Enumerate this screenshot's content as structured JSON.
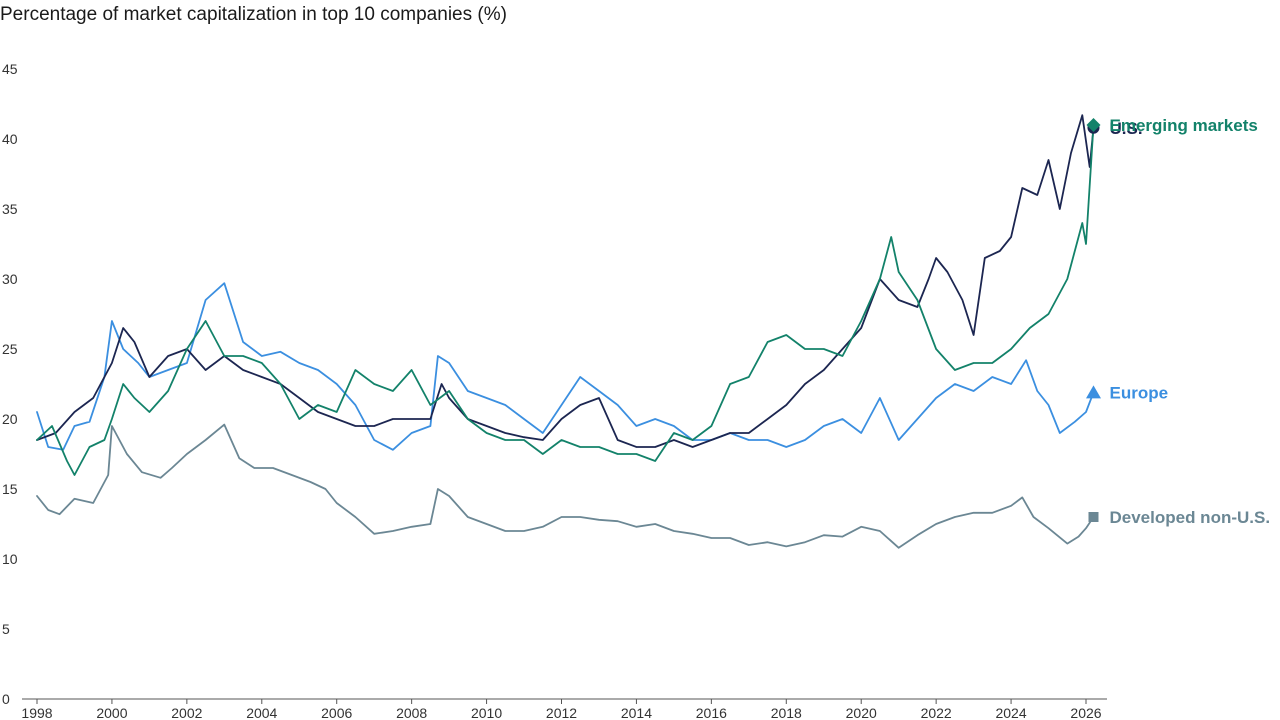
{
  "chart_data": {
    "type": "line",
    "title": "Percentage of market capitalization in top 10 companies (%)",
    "xlabel": "",
    "ylabel": "",
    "ylim": [
      0,
      45
    ],
    "xlim": [
      1998,
      2026.5
    ],
    "yticks": [
      0,
      5,
      10,
      15,
      20,
      25,
      30,
      35,
      40,
      45
    ],
    "xticks": [
      1998,
      2000,
      2002,
      2004,
      2006,
      2008,
      2010,
      2012,
      2014,
      2016,
      2018,
      2020,
      2022,
      2024,
      2026
    ],
    "grid": false,
    "legend": "direct labels at line ends",
    "series": [
      {
        "name": "Developed non-U.S.",
        "color": "#6b8794",
        "marker": "square",
        "x": [
          1998.0,
          1998.3,
          1998.6,
          1999.0,
          1999.5,
          1999.9,
          2000.0,
          2000.4,
          2000.8,
          2001.3,
          2001.6,
          2002.0,
          2002.5,
          2003.0,
          2003.4,
          2003.8,
          2004.3,
          2004.8,
          2005.3,
          2005.7,
          2006.0,
          2006.5,
          2007.0,
          2007.5,
          2008.0,
          2008.5,
          2008.7,
          2009.0,
          2009.5,
          2010.0,
          2010.5,
          2011.0,
          2011.5,
          2012.0,
          2012.5,
          2013.0,
          2013.5,
          2014.0,
          2014.5,
          2015.0,
          2015.5,
          2016.0,
          2016.5,
          2017.0,
          2017.5,
          2018.0,
          2018.5,
          2019.0,
          2019.5,
          2020.0,
          2020.5,
          2021.0,
          2021.5,
          2022.0,
          2022.5,
          2023.0,
          2023.5,
          2024.0,
          2024.3,
          2024.6,
          2025.0,
          2025.5,
          2025.8,
          2026.0,
          2026.2
        ],
        "values": [
          14.5,
          13.5,
          13.2,
          14.3,
          14.0,
          16.0,
          19.5,
          17.5,
          16.2,
          15.8,
          16.5,
          17.5,
          18.5,
          19.6,
          17.2,
          16.5,
          16.5,
          16.0,
          15.5,
          15.0,
          14.0,
          13.0,
          11.8,
          12.0,
          12.3,
          12.5,
          15.0,
          14.5,
          13.0,
          12.5,
          12.0,
          12.0,
          12.3,
          13.0,
          13.0,
          12.8,
          12.7,
          12.3,
          12.5,
          12.0,
          11.8,
          11.5,
          11.5,
          11.0,
          11.2,
          10.9,
          11.2,
          11.7,
          11.6,
          12.3,
          12.0,
          10.8,
          11.7,
          12.5,
          13.0,
          13.3,
          13.3,
          13.8,
          14.4,
          13.0,
          12.2,
          11.1,
          11.6,
          12.2,
          13.0
        ]
      },
      {
        "name": "Europe",
        "color": "#3b8fe0",
        "marker": "triangle",
        "x": [
          1998.0,
          1998.3,
          1998.7,
          1999.0,
          1999.4,
          1999.8,
          2000.0,
          2000.3,
          2000.7,
          2001.0,
          2001.5,
          2002.0,
          2002.5,
          2003.0,
          2003.5,
          2004.0,
          2004.5,
          2005.0,
          2005.5,
          2006.0,
          2006.5,
          2007.0,
          2007.5,
          2008.0,
          2008.5,
          2008.7,
          2009.0,
          2009.5,
          2010.0,
          2010.5,
          2011.0,
          2011.5,
          2012.0,
          2012.5,
          2013.0,
          2013.5,
          2014.0,
          2014.5,
          2015.0,
          2015.5,
          2016.0,
          2016.5,
          2017.0,
          2017.5,
          2018.0,
          2018.5,
          2019.0,
          2019.5,
          2020.0,
          2020.5,
          2021.0,
          2021.5,
          2022.0,
          2022.5,
          2023.0,
          2023.5,
          2024.0,
          2024.4,
          2024.7,
          2025.0,
          2025.3,
          2025.7,
          2026.0,
          2026.2
        ],
        "values": [
          20.5,
          18.0,
          17.8,
          19.5,
          19.8,
          23.0,
          27.0,
          25.0,
          24.0,
          23.0,
          23.5,
          24.0,
          28.5,
          29.7,
          25.5,
          24.5,
          24.8,
          24.0,
          23.5,
          22.5,
          21.0,
          18.5,
          17.8,
          19.0,
          19.5,
          24.5,
          24.0,
          22.0,
          21.5,
          21.0,
          20.0,
          19.0,
          21.0,
          23.0,
          22.0,
          21.0,
          19.5,
          20.0,
          19.5,
          18.5,
          18.5,
          19.0,
          18.5,
          18.5,
          18.0,
          18.5,
          19.5,
          20.0,
          19.0,
          21.5,
          18.5,
          20.0,
          21.5,
          22.5,
          22.0,
          23.0,
          22.5,
          24.2,
          22.0,
          21.0,
          19.0,
          19.8,
          20.5,
          21.9
        ]
      },
      {
        "name": "U.S.",
        "color": "#1c2651",
        "marker": "circle",
        "x": [
          1998.0,
          1998.5,
          1999.0,
          1999.5,
          2000.0,
          2000.3,
          2000.6,
          2001.0,
          2001.5,
          2002.0,
          2002.5,
          2003.0,
          2003.5,
          2004.0,
          2004.5,
          2005.0,
          2005.5,
          2006.0,
          2006.5,
          2007.0,
          2007.5,
          2008.0,
          2008.5,
          2008.8,
          2009.0,
          2009.5,
          2010.0,
          2010.5,
          2011.0,
          2011.5,
          2012.0,
          2012.5,
          2013.0,
          2013.5,
          2014.0,
          2014.5,
          2015.0,
          2015.5,
          2016.0,
          2016.5,
          2017.0,
          2017.5,
          2018.0,
          2018.5,
          2019.0,
          2019.5,
          2020.0,
          2020.5,
          2021.0,
          2021.5,
          2021.8,
          2022.0,
          2022.3,
          2022.7,
          2023.0,
          2023.3,
          2023.7,
          2024.0,
          2024.3,
          2024.7,
          2025.0,
          2025.3,
          2025.6,
          2025.9,
          2026.1,
          2026.2
        ],
        "values": [
          18.5,
          19.0,
          20.5,
          21.5,
          24.0,
          26.5,
          25.5,
          23.0,
          24.5,
          25.0,
          23.5,
          24.5,
          23.5,
          23.0,
          22.5,
          21.5,
          20.5,
          20.0,
          19.5,
          19.5,
          20.0,
          20.0,
          20.0,
          22.5,
          21.5,
          20.0,
          19.5,
          19.0,
          18.7,
          18.5,
          20.0,
          21.0,
          21.5,
          18.5,
          18.0,
          18.0,
          18.5,
          18.0,
          18.5,
          19.0,
          19.0,
          20.0,
          21.0,
          22.5,
          23.5,
          25.0,
          26.5,
          30.0,
          28.5,
          28.0,
          30.0,
          31.5,
          30.5,
          28.5,
          26.0,
          31.5,
          32.0,
          33.0,
          36.5,
          36.0,
          38.5,
          35.0,
          39.0,
          41.7,
          38.0,
          40.8
        ]
      },
      {
        "name": "Emerging markets",
        "color": "#13826a",
        "marker": "diamond",
        "x": [
          1998.0,
          1998.4,
          1998.8,
          1999.0,
          1999.4,
          1999.8,
          2000.0,
          2000.3,
          2000.6,
          2001.0,
          2001.5,
          2002.0,
          2002.5,
          2003.0,
          2003.5,
          2004.0,
          2004.5,
          2005.0,
          2005.5,
          2006.0,
          2006.5,
          2007.0,
          2007.5,
          2008.0,
          2008.5,
          2009.0,
          2009.5,
          2010.0,
          2010.5,
          2011.0,
          2011.5,
          2012.0,
          2012.5,
          2013.0,
          2013.5,
          2014.0,
          2014.5,
          2015.0,
          2015.5,
          2016.0,
          2016.5,
          2017.0,
          2017.5,
          2018.0,
          2018.5,
          2019.0,
          2019.5,
          2020.0,
          2020.5,
          2020.8,
          2021.0,
          2021.5,
          2022.0,
          2022.5,
          2023.0,
          2023.5,
          2024.0,
          2024.5,
          2025.0,
          2025.5,
          2025.9,
          2026.0,
          2026.2
        ],
        "values": [
          18.5,
          19.5,
          17.0,
          16.0,
          18.0,
          18.5,
          20.0,
          22.5,
          21.5,
          20.5,
          22.0,
          25.0,
          27.0,
          24.5,
          24.5,
          24.0,
          22.5,
          20.0,
          21.0,
          20.5,
          23.5,
          22.5,
          22.0,
          23.5,
          21.0,
          22.0,
          20.0,
          19.0,
          18.5,
          18.5,
          17.5,
          18.5,
          18.0,
          18.0,
          17.5,
          17.5,
          17.0,
          19.0,
          18.5,
          19.5,
          22.5,
          23.0,
          25.5,
          26.0,
          25.0,
          25.0,
          24.5,
          27.0,
          30.0,
          33.0,
          30.5,
          28.5,
          25.0,
          23.5,
          24.0,
          24.0,
          25.0,
          26.5,
          27.5,
          30.0,
          34.0,
          32.5,
          41.0
        ]
      }
    ]
  }
}
